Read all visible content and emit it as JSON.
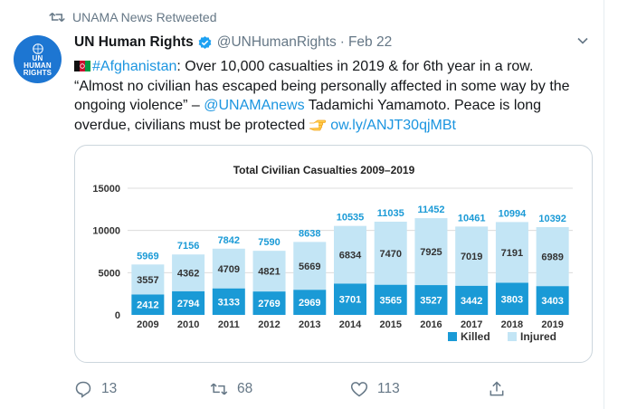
{
  "retweet": {
    "icon": "retweet-icon",
    "label": "UNAMA News Retweeted"
  },
  "author": {
    "avatar_lines": [
      "UN",
      "HUMAN",
      "RIGHTS"
    ],
    "name": "UN Human Rights",
    "handle": "@UNHumanRights",
    "separator": "·",
    "date": "Feb 22"
  },
  "tweet": {
    "hashtag": "#Afghanistan",
    "text_1": ": Over 10,000 casualties in 2019 & for 6th year in a row.",
    "text_2": "“Almost no civilian has escaped being personally affected in some way by the ongoing violence” – ",
    "mention": "@UNAMAnews",
    "text_3": " Tadamichi Yamamoto. Peace is long overdue, civilians must be protected",
    "link": "ow.ly/ANJT30qjMBt"
  },
  "chart_data": {
    "type": "bar",
    "title": "Total Civilian Casualties 2009–2019",
    "categories": [
      "2009",
      "2010",
      "2011",
      "2012",
      "2013",
      "2014",
      "2015",
      "2016",
      "2017",
      "2018",
      "2019"
    ],
    "series": [
      {
        "name": "Killed",
        "values": [
          2412,
          2794,
          3133,
          2769,
          2969,
          3701,
          3565,
          3527,
          3442,
          3803,
          3403
        ],
        "color": "#1a9ad6"
      },
      {
        "name": "Injured",
        "values": [
          3557,
          4362,
          4709,
          4821,
          5669,
          6834,
          7470,
          7925,
          7019,
          7191,
          6989
        ],
        "color": "#c3e5f5"
      }
    ],
    "totals": [
      5969,
      7156,
      7842,
      7590,
      8638,
      10535,
      11035,
      11452,
      10461,
      10994,
      10392
    ],
    "yticks": [
      "15000",
      "10000",
      "5000",
      "0"
    ],
    "ylim": [
      0,
      15000
    ],
    "legend_position": "bottom-right",
    "total_label_color": "#1a9ad6"
  },
  "actions": {
    "reply": {
      "icon": "reply-icon",
      "count": "13"
    },
    "retweet": {
      "icon": "retweet-icon",
      "count": "68"
    },
    "like": {
      "icon": "heart-icon",
      "count": "113"
    },
    "share": {
      "icon": "share-icon"
    }
  }
}
